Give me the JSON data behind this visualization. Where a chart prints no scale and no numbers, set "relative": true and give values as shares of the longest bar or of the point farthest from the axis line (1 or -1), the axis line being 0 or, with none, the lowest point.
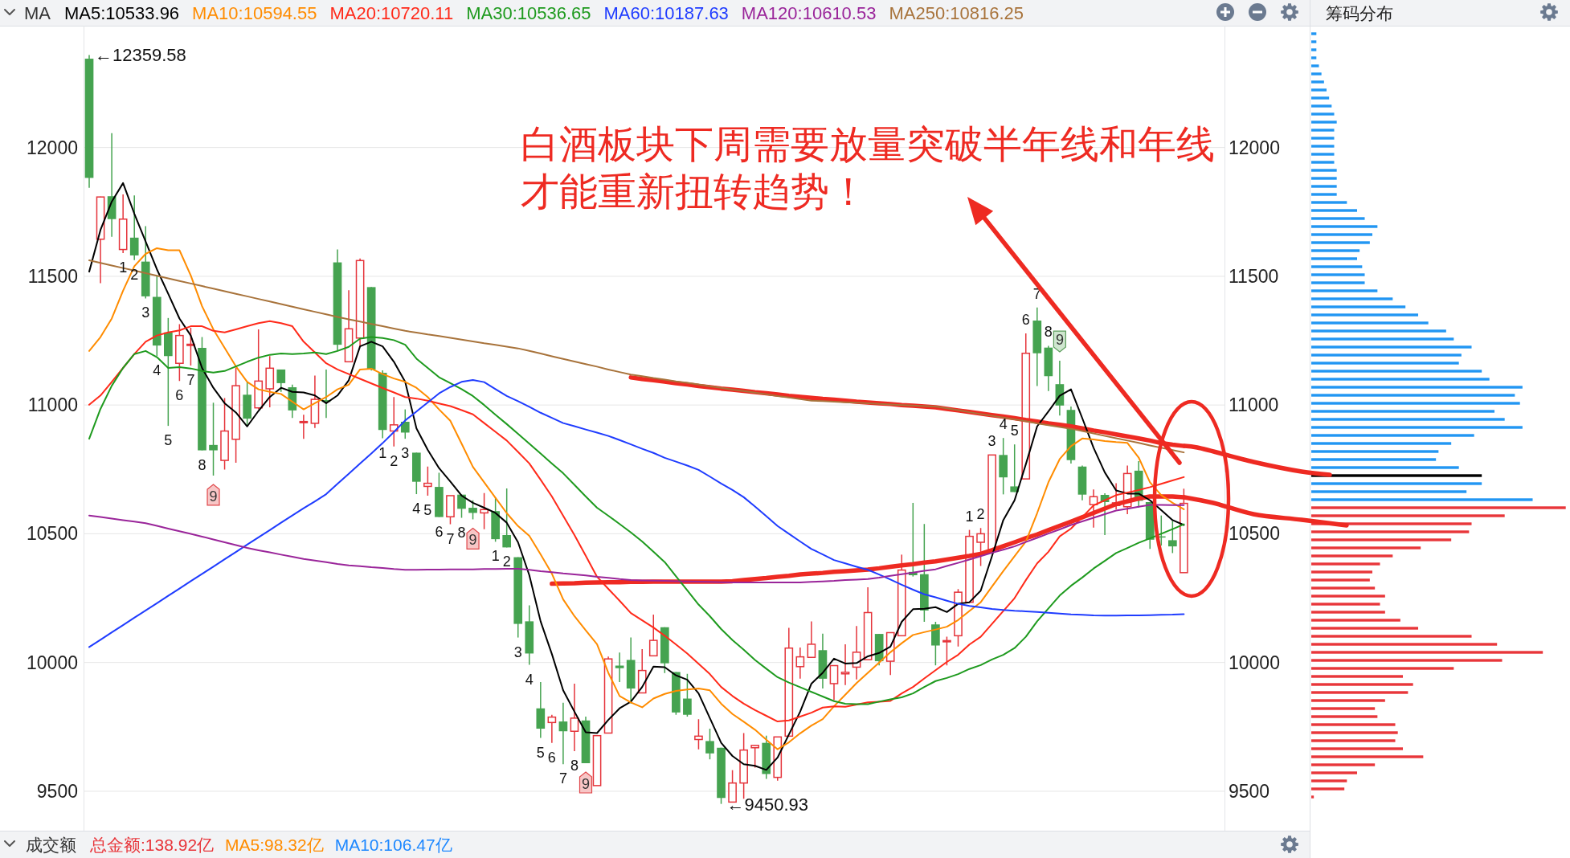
{
  "chart_data": [
    {
      "type": "candlestick",
      "legend": "top",
      "legend_title": "MA",
      "grid": "y",
      "categories": [
        null,
        null,
        null,
        null,
        null,
        null,
        null,
        null,
        null,
        null,
        null,
        null,
        null,
        null,
        null,
        null,
        null,
        null,
        null,
        null,
        null,
        null,
        null,
        null,
        null,
        null,
        null,
        null,
        null,
        null,
        null,
        null,
        null,
        null,
        null,
        null,
        null,
        null,
        null,
        null,
        null,
        null,
        null,
        null,
        null,
        null,
        null,
        null,
        null,
        null,
        null,
        null,
        null,
        null,
        null,
        null,
        null,
        null,
        null,
        null,
        null,
        null,
        null,
        null,
        null,
        null,
        null,
        null,
        null,
        null,
        null,
        null,
        null,
        null,
        null,
        null,
        null,
        null,
        null,
        null,
        null,
        null,
        null,
        null,
        null,
        null,
        null,
        null,
        null,
        null,
        null,
        null,
        null,
        null,
        null,
        null,
        null,
        null
      ],
      "ohlc": [
        [
          12345,
          12359.58,
          11844,
          11882
        ],
        [
          11644,
          11809,
          11473,
          11808
        ],
        [
          11811,
          12056,
          11653,
          11722
        ],
        [
          11604,
          11818,
          11590,
          11722
        ],
        [
          11650,
          11814,
          11563,
          11581
        ],
        [
          11557,
          11695,
          11414,
          11422
        ],
        [
          11420,
          11503,
          11190,
          11231
        ],
        [
          11282,
          11338,
          10919,
          11190
        ],
        [
          11162,
          11314,
          11093,
          11270
        ],
        [
          11232,
          11300,
          11153,
          11236
        ],
        [
          11222,
          11264,
          10824,
          10824
        ],
        [
          10845,
          11009,
          10726,
          10824
        ],
        [
          10785,
          11027,
          10749,
          10899
        ],
        [
          10867,
          11144,
          10776,
          11075
        ],
        [
          11040,
          11090,
          10923,
          10947
        ],
        [
          10989,
          11294,
          10983,
          11093
        ],
        [
          11063,
          11190,
          10991,
          11143
        ],
        [
          11138,
          11138,
          11051,
          11085
        ],
        [
          11069,
          11079,
          10950,
          10979
        ],
        [
          10932,
          10962,
          10869,
          10936
        ],
        [
          10929,
          11114,
          10911,
          11022
        ],
        [
          11019,
          11138,
          10950,
          11012
        ],
        [
          11554,
          11604,
          11210,
          11234
        ],
        [
          11168,
          11446,
          11166,
          11296
        ],
        [
          11260,
          11569,
          11228,
          11561
        ],
        [
          11458,
          11458,
          11134,
          11138
        ],
        [
          11125,
          11135,
          10871,
          10903
        ],
        [
          10899,
          11031,
          10839,
          10923
        ],
        [
          10935,
          10983,
          10869,
          10893
        ],
        [
          10815,
          10815,
          10654,
          10702
        ],
        [
          10684,
          10761,
          10648,
          10696
        ],
        [
          10682,
          10737,
          10565,
          10565
        ],
        [
          10566,
          10648,
          10537,
          10648
        ],
        [
          10652,
          10652,
          10562,
          10597
        ],
        [
          10601,
          10630,
          10556,
          10581
        ],
        [
          10581,
          10658,
          10518,
          10594
        ],
        [
          10588,
          10641,
          10469,
          10479
        ],
        [
          10495,
          10676,
          10447,
          10447
        ],
        [
          10409,
          10409,
          10097,
          10150
        ],
        [
          10160,
          10222,
          9991,
          10035
        ],
        [
          9822,
          9924,
          9707,
          9743
        ],
        [
          9767,
          9797,
          9688,
          9788
        ],
        [
          9771,
          9844,
          9605,
          9733
        ],
        [
          9733,
          9918,
          9656,
          9784
        ],
        [
          9775,
          9790,
          9609,
          9609
        ],
        [
          9522,
          9716,
          9522,
          9716
        ],
        [
          9726,
          10023,
          9726,
          10014
        ],
        [
          9988,
          10039,
          9924,
          9978
        ],
        [
          10010,
          10097,
          9841,
          9899
        ],
        [
          9882,
          10052,
          9882,
          9969
        ],
        [
          10026,
          10186,
          10026,
          10086
        ],
        [
          10137,
          10137,
          9959,
          9997
        ],
        [
          9963,
          9963,
          9797,
          9806
        ],
        [
          9860,
          9956,
          9790,
          9797
        ],
        [
          9701,
          9780,
          9663,
          9714
        ],
        [
          9695,
          9743,
          9624,
          9647
        ],
        [
          9669,
          9669,
          9450.93,
          9474
        ],
        [
          9458,
          9582,
          9458,
          9532
        ],
        [
          9532,
          9726,
          9471,
          9660
        ],
        [
          9669,
          9680,
          9592,
          9678
        ],
        [
          9688,
          9716,
          9548,
          9567
        ],
        [
          9554,
          9711,
          9541,
          9711
        ],
        [
          9714,
          10135,
          9714,
          10056
        ],
        [
          9984,
          10058,
          9937,
          10022
        ],
        [
          10020,
          10160,
          10020,
          10071
        ],
        [
          10048,
          10112,
          9899,
          9937
        ],
        [
          9918,
          9988,
          9854,
          9988
        ],
        [
          9956,
          10071,
          9912,
          9962
        ],
        [
          9982,
          10142,
          9934,
          10040
        ],
        [
          10011,
          10292,
          10011,
          10194
        ],
        [
          10111,
          10111,
          9989,
          10005
        ],
        [
          10005,
          10116,
          9951,
          10116
        ],
        [
          10104,
          10419,
          10104,
          10359
        ],
        [
          10352,
          10620,
          10334,
          10339
        ],
        [
          10343,
          10538,
          10158,
          10202
        ],
        [
          10148,
          10158,
          9989,
          10066
        ],
        [
          10081,
          10100,
          9989,
          10085
        ],
        [
          10104,
          10285,
          10062,
          10273
        ],
        [
          10234,
          10515,
          10234,
          10490
        ],
        [
          10467,
          10522,
          10375,
          10500
        ],
        [
          10439,
          10806,
          10439,
          10806
        ],
        [
          10806,
          10872,
          10653,
          10719
        ],
        [
          10684,
          10847,
          10662,
          10662
        ],
        [
          10713,
          11278,
          10713,
          11201
        ],
        [
          11328,
          11379,
          11074,
          11201
        ],
        [
          11223,
          11230,
          11054,
          11112
        ],
        [
          11081,
          11172,
          10959,
          10998
        ],
        [
          10981,
          10994,
          10773,
          10786
        ],
        [
          10761,
          10765,
          10630,
          10652
        ],
        [
          10613,
          10672,
          10524,
          10644
        ],
        [
          10651,
          10657,
          10495,
          10623
        ],
        [
          10610,
          10696,
          10595,
          10620
        ],
        [
          10605,
          10765,
          10576,
          10734
        ],
        [
          10745,
          10782,
          10602,
          10628
        ],
        [
          10623,
          10623,
          10441,
          10477
        ],
        [
          10490,
          10571,
          10454,
          10486
        ],
        [
          10475,
          10550,
          10425,
          10451
        ],
        [
          10349,
          10675,
          10349,
          10618
        ]
      ],
      "colors": [
        "#45a350",
        "#e5343b",
        "#45a350",
        "#e5343b",
        "#45a350",
        "#45a350",
        "#45a350",
        "#45a350",
        "#e5343b",
        "#e5343b",
        "#45a350",
        "#45a350",
        "#e5343b",
        "#e5343b",
        "#45a350",
        "#e5343b",
        "#e5343b",
        "#45a350",
        "#45a350",
        "#e5343b",
        "#e5343b",
        "#45a350",
        "#45a350",
        "#e5343b",
        "#e5343b",
        "#45a350",
        "#45a350",
        "#e5343b",
        "#45a350",
        "#45a350",
        "#e5343b",
        "#45a350",
        "#e5343b",
        "#45a350",
        "#45a350",
        "#e5343b",
        "#45a350",
        "#45a350",
        "#45a350",
        "#45a350",
        "#45a350",
        "#e5343b",
        "#45a350",
        "#e5343b",
        "#45a350",
        "#e5343b",
        "#e5343b",
        "#45a350",
        "#45a350",
        "#e5343b",
        "#e5343b",
        "#45a350",
        "#45a350",
        "#45a350",
        "#e5343b",
        "#45a350",
        "#45a350",
        "#e5343b",
        "#e5343b",
        "#e5343b",
        "#45a350",
        "#e5343b",
        "#e5343b",
        "#e5343b",
        "#e5343b",
        "#45a350",
        "#e5343b",
        "#e5343b",
        "#e5343b",
        "#e5343b",
        "#45a350",
        "#e5343b",
        "#e5343b",
        "#45a350",
        "#45a350",
        "#45a350",
        "#e5343b",
        "#e5343b",
        "#e5343b",
        "#e5343b",
        "#e5343b",
        "#45a350",
        "#45a350",
        "#e5343b",
        "#45a350",
        "#45a350",
        "#45a350",
        "#45a350",
        "#45a350",
        "#e5343b",
        "#45a350",
        "#e5343b",
        "#e5343b",
        "#45a350",
        "#45a350",
        "#45a350",
        "#45a350",
        "#e5343b"
      ],
      "value_labels": [
        null,
        null,
        null,
        "1",
        "2",
        "3",
        "4",
        "5",
        "6",
        "7",
        "8",
        "9",
        null,
        null,
        null,
        null,
        null,
        null,
        null,
        null,
        null,
        null,
        null,
        null,
        null,
        null,
        "1",
        "2",
        "3",
        "4",
        "5",
        "6",
        "7",
        "8",
        "9",
        null,
        "1",
        "2",
        "3",
        "4",
        "5",
        "6",
        "7",
        "8",
        "9",
        null,
        null,
        null,
        null,
        null,
        null,
        null,
        null,
        null,
        null,
        null,
        null,
        null,
        null,
        null,
        null,
        null,
        null,
        null,
        null,
        null,
        null,
        null,
        null,
        null,
        null,
        null,
        null,
        null,
        null,
        null,
        null,
        null,
        "1",
        "2",
        "3",
        "4",
        "5",
        "6",
        "7",
        "8",
        "9",
        null,
        null,
        null,
        null,
        null,
        null,
        null,
        null,
        null,
        null,
        null
      ],
      "series": [
        {
          "type": "line",
          "name": "MA5:10533.96",
          "color": "#000000",
          "values": [
            11518,
            11680,
            11790,
            11862,
            11743,
            11635,
            11527,
            11432,
            11336,
            11270,
            11144,
            11067,
            11007,
            10971,
            10917,
            10977,
            11031,
            11067,
            11051,
            11049,
            11037,
            11007,
            11037,
            11096,
            11228,
            11246,
            11228,
            11168,
            11090,
            10909,
            10826,
            10755,
            10703,
            10648,
            10620,
            10601,
            10581,
            10543,
            10467,
            10339,
            10160,
            10033,
            9892,
            9809,
            9729,
            9726,
            9777,
            9822,
            9848,
            9905,
            9984,
            9982,
            9950,
            9933,
            9880,
            9784,
            9688,
            9637,
            9605,
            9599,
            9583,
            9631,
            9720,
            9809,
            9918,
            9960,
            10015,
            9996,
            9998,
            10024,
            10037,
            10062,
            10158,
            10207,
            10209,
            10215,
            10196,
            10228,
            10234,
            10279,
            10413,
            10553,
            10630,
            10770,
            10917,
            10975,
            11036,
            11061,
            10949,
            10834,
            10738,
            10668,
            10656,
            10656,
            10630,
            10592,
            10553,
            10534
          ]
        },
        {
          "type": "line",
          "name": "MA10:10594.55",
          "color": "#ff8c00",
          "values": [
            11210,
            11264,
            11336,
            11444,
            11539,
            11587,
            11609,
            11601,
            11601,
            11503,
            11384,
            11294,
            11222,
            11150,
            11090,
            11061,
            11051,
            11043,
            11013,
            10983,
            11007,
            11031,
            11061,
            11079,
            11138,
            11141,
            11120,
            11103,
            11090,
            11067,
            11031,
            10983,
            10939,
            10850,
            10760,
            10700,
            10640,
            10580,
            10530,
            10492,
            10420,
            10345,
            10245,
            10180,
            10125,
            10071,
            9960,
            9870,
            9845,
            9826,
            9860,
            9878,
            9890,
            9895,
            9899,
            9892,
            9840,
            9800,
            9770,
            9739,
            9700,
            9663,
            9690,
            9725,
            9755,
            9780,
            9830,
            9875,
            9920,
            9960,
            10000,
            10040,
            10075,
            10107,
            10118,
            10128,
            10139,
            10165,
            10200,
            10234,
            10295,
            10355,
            10413,
            10470,
            10580,
            10700,
            10790,
            10840,
            10870,
            10866,
            10860,
            10856,
            10853,
            10796,
            10700,
            10650,
            10620,
            10595
          ]
        },
        {
          "type": "line",
          "name": "MA20:10720.11",
          "color": "#ff2a1a",
          "values": [
            11001,
            11037,
            11090,
            11144,
            11198,
            11246,
            11270,
            11282,
            11290,
            11306,
            11306,
            11288,
            11282,
            11294,
            11306,
            11318,
            11326,
            11318,
            11306,
            11246,
            11204,
            11162,
            11138,
            11120,
            11102,
            11084,
            11066,
            11049,
            11031,
            11025,
            11017,
            11006,
            10996,
            10980,
            10964,
            10930,
            10896,
            10862,
            10818,
            10773,
            10710,
            10645,
            10570,
            10495,
            10415,
            10333,
            10286,
            10240,
            10192,
            10164,
            10136,
            10104,
            10070,
            10035,
            9995,
            9955,
            9905,
            9870,
            9840,
            9815,
            9793,
            9771,
            9775,
            9790,
            9805,
            9825,
            9830,
            9828,
            9837,
            9845,
            9848,
            9851,
            9880,
            9905,
            9938,
            9970,
            10002,
            10030,
            10070,
            10100,
            10150,
            10200,
            10250,
            10320,
            10385,
            10430,
            10490,
            10520,
            10565,
            10610,
            10630,
            10650,
            10660,
            10670,
            10681,
            10694,
            10707,
            10720
          ]
        },
        {
          "type": "line",
          "name": "MA30:10536.65",
          "color": "#1e9a1e",
          "values": [
            10869,
            10985,
            11075,
            11144,
            11198,
            11210,
            11186,
            11144,
            11147,
            11142,
            11132,
            11126,
            11132,
            11150,
            11168,
            11184,
            11195,
            11200,
            11198,
            11200,
            11204,
            11198,
            11210,
            11226,
            11258,
            11264,
            11260,
            11252,
            11234,
            11180,
            11144,
            11108,
            11085,
            11062,
            11035,
            11000,
            10962,
            10926,
            10888,
            10850,
            10812,
            10773,
            10735,
            10690,
            10645,
            10601,
            10570,
            10538,
            10505,
            10470,
            10430,
            10390,
            10335,
            10280,
            10225,
            10180,
            10130,
            10087,
            10050,
            10010,
            9976,
            9943,
            9922,
            9904,
            9886,
            9868,
            9850,
            9840,
            9838,
            9838,
            9848,
            9857,
            9865,
            9880,
            9905,
            9928,
            9940,
            9955,
            9975,
            9990,
            10012,
            10030,
            10056,
            10100,
            10160,
            10210,
            10260,
            10298,
            10330,
            10365,
            10395,
            10425,
            10445,
            10465,
            10482,
            10500,
            10518,
            10537
          ]
        },
        {
          "type": "line",
          "name": "MA60:10187.63",
          "color": "#1f3cff",
          "values": [
            10060,
            10088,
            10117,
            10145,
            10174,
            10202,
            10230,
            10259,
            10287,
            10316,
            10344,
            10372,
            10401,
            10429,
            10458,
            10486,
            10514,
            10543,
            10571,
            10599,
            10626,
            10654,
            10694,
            10733,
            10773,
            10812,
            10852,
            10895,
            10940,
            10975,
            11010,
            11045,
            11070,
            11090,
            11097,
            11089,
            11062,
            11035,
            11015,
            10993,
            10970,
            10950,
            10930,
            10918,
            10905,
            10893,
            10880,
            10864,
            10847,
            10830,
            10814,
            10795,
            10780,
            10765,
            10748,
            10722,
            10695,
            10670,
            10642,
            10606,
            10568,
            10530,
            10500,
            10470,
            10441,
            10420,
            10398,
            10385,
            10372,
            10360,
            10342,
            10322,
            10302,
            10283,
            10265,
            10253,
            10240,
            10228,
            10220,
            10214,
            10208,
            10204,
            10201,
            10199,
            10196,
            10193,
            10190,
            10187,
            10185,
            10183,
            10182,
            10182,
            10183,
            10183,
            10184,
            10185,
            10186,
            10188
          ]
        },
        {
          "type": "line",
          "name": "MA120:10610.53",
          "color": "#9a259a",
          "values": [
            10571,
            10565,
            10559,
            10553,
            10547,
            10541,
            10531,
            10520,
            10510,
            10500,
            10489,
            10478,
            10467,
            10456,
            10445,
            10436,
            10428,
            10419,
            10411,
            10402,
            10396,
            10390,
            10383,
            10377,
            10374,
            10370,
            10367,
            10363,
            10360,
            10360,
            10361,
            10361,
            10362,
            10362,
            10362,
            10363,
            10363,
            10364,
            10364,
            10360,
            10355,
            10351,
            10346,
            10342,
            10338,
            10333,
            10329,
            10324,
            10320,
            10319,
            10318,
            10317,
            10316,
            10315,
            10314,
            10313,
            10312,
            10311,
            10311,
            10311,
            10311,
            10311,
            10311,
            10311,
            10313,
            10315,
            10317,
            10320,
            10322,
            10324,
            10330,
            10337,
            10343,
            10349,
            10356,
            10362,
            10375,
            10387,
            10400,
            10413,
            10426,
            10438,
            10451,
            10468,
            10484,
            10501,
            10517,
            10534,
            10548,
            10562,
            10576,
            10590,
            10597,
            10605,
            10612,
            10612,
            10611,
            10611
          ]
        },
        {
          "type": "line",
          "name": "MA250:10816.25",
          "color": "#a8733b",
          "values": [
            11562,
            11552,
            11542,
            11532,
            11522,
            11512,
            11502,
            11492,
            11482,
            11472,
            11462,
            11452,
            11442,
            11432,
            11422,
            11412,
            11402,
            11392,
            11382,
            11372,
            11362,
            11352,
            11342,
            11333,
            11324,
            11315,
            11306,
            11297,
            11288,
            11281,
            11274,
            11268,
            11261,
            11254,
            11247,
            11240,
            11234,
            11227,
            11220,
            11210,
            11200,
            11189,
            11179,
            11169,
            11159,
            11149,
            11138,
            11128,
            11118,
            11112,
            11105,
            11099,
            11092,
            11086,
            11080,
            11073,
            11067,
            11060,
            11054,
            11048,
            11042,
            11035,
            11029,
            11023,
            11017,
            11015,
            11013,
            11011,
            11009,
            11007,
            11004,
            11002,
            11000,
            10998,
            10996,
            10994,
            10987,
            10980,
            10972,
            10965,
            10958,
            10951,
            10944,
            10937,
            10929,
            10922,
            10915,
            10908,
            10899,
            10890,
            10880,
            10871,
            10862,
            10853,
            10843,
            10834,
            10825,
            10816
          ]
        },
        {
          "type": "line",
          "color": "#ee2a22",
          "values": [
            null,
            null,
            null,
            null,
            null,
            null,
            null,
            null,
            null,
            null,
            null,
            null,
            null,
            null,
            null,
            null,
            null,
            null,
            null,
            null,
            null,
            null,
            null,
            null,
            null,
            null,
            null,
            null,
            null,
            null,
            null,
            null,
            null,
            null,
            null,
            null,
            null,
            null,
            null,
            null,
            null,
            null,
            null,
            null,
            null,
            null,
            null,
            null,
            11107,
            11101,
            11096,
            11091,
            11085,
            11080,
            11074,
            11069,
            11064,
            11060,
            11055,
            11050,
            11046,
            11041,
            11036,
            11032,
            11028,
            11024,
            11021,
            11017,
            11013,
            11010,
            11007,
            11004,
            11000,
            10997,
            10994,
            10991,
            10985,
            10979,
            10973,
            10967,
            10961,
            10955,
            10949,
            10942,
            10936,
            10929,
            10923,
            10917,
            10909,
            10901,
            10894,
            10886,
            10878,
            10870,
            10862,
            10852,
            10846,
            10841
          ]
        },
        {
          "type": "line",
          "color": "#ee2a22",
          "values": [
            null,
            null,
            null,
            null,
            null,
            null,
            null,
            null,
            null,
            null,
            null,
            null,
            null,
            null,
            null,
            null,
            null,
            null,
            null,
            null,
            null,
            null,
            null,
            null,
            null,
            null,
            null,
            null,
            null,
            null,
            null,
            null,
            null,
            null,
            null,
            null,
            null,
            null,
            null,
            null,
            null,
            10306,
            10307,
            10308,
            10310,
            10311,
            10312,
            10312,
            10313,
            10313,
            10314,
            10314,
            10314,
            10314,
            10314,
            10314,
            10314,
            10316,
            10320,
            10324,
            10328,
            10333,
            10337,
            10342,
            10345,
            10348,
            10352,
            10355,
            10358,
            10361,
            10366,
            10372,
            10377,
            10382,
            10388,
            10393,
            10400,
            10407,
            10414,
            10422,
            10436,
            10452,
            10467,
            10483,
            10497,
            10514,
            10531,
            10547,
            10564,
            10581,
            10598,
            10615,
            10626,
            10637,
            10645,
            10645,
            10645,
            10642
          ]
        }
      ],
      "ylim": [
        9350,
        12470
      ],
      "yticks": [
        9500,
        10000,
        10500,
        11000,
        11500,
        12000
      ],
      "y2lim": [
        9350,
        12470
      ],
      "y2ticks": [
        9500,
        10000,
        10500,
        11000,
        11500,
        12000
      ],
      "annotations": [
        "白酒板块下周需要放量突破半年线和年线才能重新扭转趋势！",
        "←12359.58",
        "←9450.93"
      ]
    },
    {
      "type": "bar",
      "orientation": "horizontal",
      "relative": true,
      "title": "筹码分布",
      "categories": [
        null,
        null,
        null,
        null,
        null,
        null,
        null,
        null,
        null,
        null,
        null,
        null,
        null,
        null,
        null,
        null,
        null,
        null,
        null,
        null,
        null,
        null,
        null,
        null,
        null,
        null,
        null,
        null,
        null,
        null,
        null,
        null,
        null,
        null,
        null,
        null,
        null,
        null,
        null,
        null,
        null,
        null,
        null,
        null,
        null,
        null,
        null,
        null,
        null,
        null,
        null,
        null,
        null,
        null,
        null,
        null,
        null,
        null,
        null,
        null,
        null,
        null,
        null,
        null,
        null,
        null,
        null,
        null,
        null,
        null,
        null,
        null,
        null,
        null,
        null,
        null,
        null,
        null,
        null,
        null,
        null,
        null,
        null,
        null,
        null,
        null,
        null,
        null,
        null,
        null,
        null,
        null,
        null,
        null,
        null,
        null
      ],
      "values": [
        0.02,
        0.02,
        0.02,
        0.02,
        0.03,
        0.04,
        0.05,
        0.06,
        0.07,
        0.08,
        0.09,
        0.1,
        0.09,
        0.09,
        0.09,
        0.09,
        0.09,
        0.1,
        0.1,
        0.1,
        0.1,
        0.14,
        0.18,
        0.21,
        0.26,
        0.24,
        0.23,
        0.19,
        0.18,
        0.2,
        0.21,
        0.21,
        0.26,
        0.32,
        0.37,
        0.42,
        0.46,
        0.53,
        0.56,
        0.63,
        0.59,
        0.58,
        0.67,
        0.7,
        0.83,
        0.8,
        0.82,
        0.72,
        0.76,
        0.83,
        0.64,
        0.55,
        0.5,
        0.49,
        0.58,
        0.67,
        0.67,
        0.61,
        0.87,
        1,
        0.76,
        0.63,
        0.62,
        0.55,
        0.43,
        0.32,
        0.27,
        0.24,
        0.23,
        0.25,
        0.29,
        0.27,
        0.29,
        0.35,
        0.42,
        0.63,
        0.73,
        0.91,
        0.75,
        0.56,
        0.36,
        0.4,
        0.38,
        0.29,
        0.25,
        0.26,
        0.33,
        0.34,
        0.33,
        0.36,
        0.44,
        0.25,
        0.18,
        0.14,
        0.13,
        0.01
      ],
      "colors": [
        "#2196f3",
        "#2196f3",
        "#2196f3",
        "#2196f3",
        "#2196f3",
        "#2196f3",
        "#2196f3",
        "#2196f3",
        "#2196f3",
        "#2196f3",
        "#2196f3",
        "#2196f3",
        "#2196f3",
        "#2196f3",
        "#2196f3",
        "#2196f3",
        "#2196f3",
        "#2196f3",
        "#2196f3",
        "#2196f3",
        "#2196f3",
        "#2196f3",
        "#2196f3",
        "#2196f3",
        "#2196f3",
        "#2196f3",
        "#2196f3",
        "#2196f3",
        "#2196f3",
        "#2196f3",
        "#2196f3",
        "#2196f3",
        "#2196f3",
        "#2196f3",
        "#2196f3",
        "#2196f3",
        "#2196f3",
        "#2196f3",
        "#2196f3",
        "#2196f3",
        "#2196f3",
        "#2196f3",
        "#2196f3",
        "#2196f3",
        "#2196f3",
        "#2196f3",
        "#2196f3",
        "#2196f3",
        "#2196f3",
        "#2196f3",
        "#2196f3",
        "#2196f3",
        "#2196f3",
        "#2196f3",
        "#2196f3",
        "#000000",
        "#2196f3",
        "#2196f3",
        "#2196f3",
        "#e8363a",
        "#e8363a",
        "#e8363a",
        "#e8363a",
        "#e8363a",
        "#e8363a",
        "#e8363a",
        "#e8363a",
        "#e8363a",
        "#e8363a",
        "#e8363a",
        "#e8363a",
        "#e8363a",
        "#e8363a",
        "#e8363a",
        "#e8363a",
        "#e8363a",
        "#e8363a",
        "#e8363a",
        "#e8363a",
        "#e8363a",
        "#e8363a",
        "#e8363a",
        "#e8363a",
        "#e8363a",
        "#e8363a",
        "#e8363a",
        "#e8363a",
        "#e8363a",
        "#e8363a",
        "#e8363a",
        "#e8363a",
        "#e8363a",
        "#e8363a",
        "#e8363a",
        "#e8363a",
        "#e8363a"
      ]
    },
    {
      "type": "other",
      "title": "成交额",
      "annotations": [
        "总金额:138.92亿",
        "MA5:98.32亿",
        "MA10:106.47亿"
      ]
    }
  ]
}
